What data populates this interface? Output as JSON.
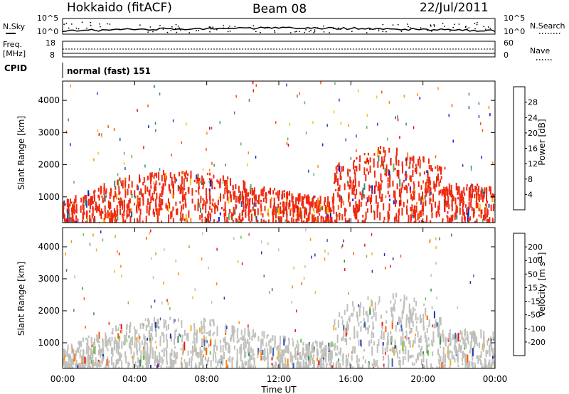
{
  "header": {
    "station": "Hokkaido (fitACF)",
    "beam": "Beam 08",
    "date": "22/Jul/2011"
  },
  "panels": {
    "nsky_label": "N.Sky",
    "nsky_ticks": [
      "10^5",
      "10^0"
    ],
    "nsearch_label": "N.Search",
    "nsearch_ticks": [
      "10^5",
      "10^0"
    ],
    "freq_label_1": "Freq.",
    "freq_label_2": "[MHz]",
    "freq_ticks": [
      "18",
      "8"
    ],
    "nave_label": "Nave",
    "nave_ticks": [
      "60",
      "0"
    ],
    "cpid_label": "CPID",
    "cpid_value": "normal (fast) 151"
  },
  "colors": {
    "power": [
      "#0a1ee6",
      "#1e50b4",
      "#3c8c78",
      "#5ab45a",
      "#f0c800",
      "#ff8c00",
      "#ff5000",
      "#f00000"
    ],
    "velocity": [
      "#1e32b4",
      "#3c64b4",
      "#3c8c50",
      "#64c83c",
      "#bebebe",
      "#bebebe",
      "#f0b41e",
      "#ff8c00",
      "#ff5a00",
      "#f01414"
    ],
    "power_fill": "#ee2a10",
    "velocity_fill": "#c0c0bc"
  },
  "chart_data": [
    {
      "type": "heatmap",
      "title": "",
      "quantity": "Power",
      "xlabel": "",
      "ylabel": "Slant Range [km]",
      "x_ticks": [
        "00:00",
        "04:00",
        "08:00",
        "12:00",
        "16:00",
        "20:00",
        "00:00"
      ],
      "y_ticks": [
        1000,
        2000,
        3000,
        4000
      ],
      "ylim": [
        200,
        4600
      ],
      "colorbar_label": "Power [dB]",
      "colorbar_ticks": [
        4,
        8,
        12,
        16,
        20,
        24,
        28
      ]
    },
    {
      "type": "heatmap",
      "title": "",
      "quantity": "Velocity",
      "xlabel": "Time UT",
      "ylabel": "Slant Range [km]",
      "x_ticks": [
        "00:00",
        "04:00",
        "08:00",
        "12:00",
        "16:00",
        "20:00",
        "00:00"
      ],
      "y_ticks": [
        1000,
        2000,
        3000,
        4000
      ],
      "ylim": [
        200,
        4600
      ],
      "colorbar_label": "Velocity [m s^-1]",
      "colorbar_ticks": [
        200,
        100,
        50,
        15,
        -15,
        -50,
        -100,
        -200
      ]
    }
  ]
}
